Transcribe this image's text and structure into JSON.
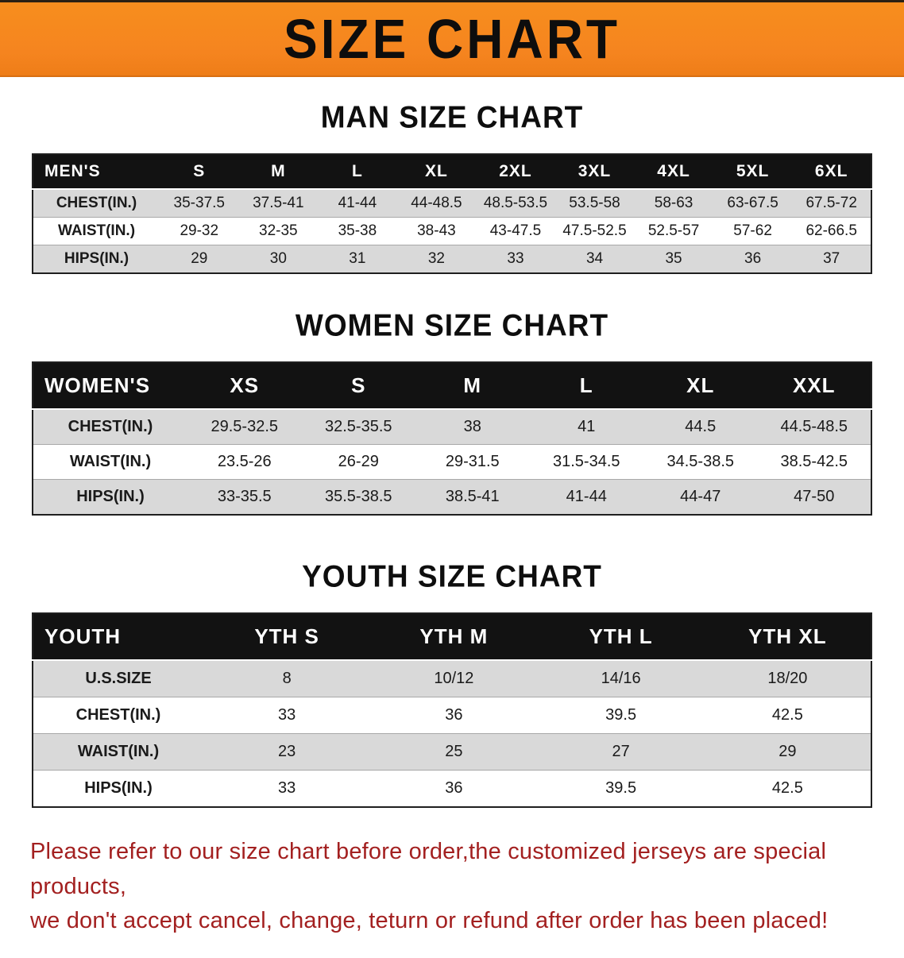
{
  "banner": {
    "title": "SIZE CHART"
  },
  "colors": {
    "accent_orange": "#F5841F",
    "header_black": "#121212",
    "row_gray": "#D9D9D9",
    "footer_red": "#A32020"
  },
  "sections": [
    {
      "heading": "MAN SIZE CHART",
      "table": {
        "name": "mens",
        "header": [
          "MEN'S",
          "S",
          "M",
          "L",
          "XL",
          "2XL",
          "3XL",
          "4XL",
          "5XL",
          "6XL"
        ],
        "rows": [
          [
            "CHEST(IN.)",
            "35-37.5",
            "37.5-41",
            "41-44",
            "44-48.5",
            "48.5-53.5",
            "53.5-58",
            "58-63",
            "63-67.5",
            "67.5-72"
          ],
          [
            "WAIST(IN.)",
            "29-32",
            "32-35",
            "35-38",
            "38-43",
            "43-47.5",
            "47.5-52.5",
            "52.5-57",
            "57-62",
            "62-66.5"
          ],
          [
            "HIPS(IN.)",
            "29",
            "30",
            "31",
            "32",
            "33",
            "34",
            "35",
            "36",
            "37"
          ]
        ]
      }
    },
    {
      "heading": "WOMEN SIZE CHART",
      "table": {
        "name": "womens",
        "header": [
          "WOMEN'S",
          "XS",
          "S",
          "M",
          "L",
          "XL",
          "XXL"
        ],
        "rows": [
          [
            "CHEST(IN.)",
            "29.5-32.5",
            "32.5-35.5",
            "38",
            "41",
            "44.5",
            "44.5-48.5"
          ],
          [
            "WAIST(IN.)",
            "23.5-26",
            "26-29",
            "29-31.5",
            "31.5-34.5",
            "34.5-38.5",
            "38.5-42.5"
          ],
          [
            "HIPS(IN.)",
            "33-35.5",
            "35.5-38.5",
            "38.5-41",
            "41-44",
            "44-47",
            "47-50"
          ]
        ]
      }
    },
    {
      "heading": "YOUTH SIZE CHART",
      "table": {
        "name": "youth",
        "header": [
          "YOUTH",
          "YTH S",
          "YTH M",
          "YTH L",
          "YTH XL"
        ],
        "rows": [
          [
            "U.S.SIZE",
            "8",
            "10/12",
            "14/16",
            "18/20"
          ],
          [
            "CHEST(IN.)",
            "33",
            "36",
            "39.5",
            "42.5"
          ],
          [
            "WAIST(IN.)",
            "23",
            "25",
            "27",
            "29"
          ],
          [
            "HIPS(IN.)",
            "33",
            "36",
            "39.5",
            "42.5"
          ]
        ]
      }
    }
  ],
  "footer": {
    "lines": [
      "Please refer to our size chart before order,the customized jerseys are special products,",
      "we don't accept cancel, change, teturn or refund after order has been placed!"
    ]
  }
}
